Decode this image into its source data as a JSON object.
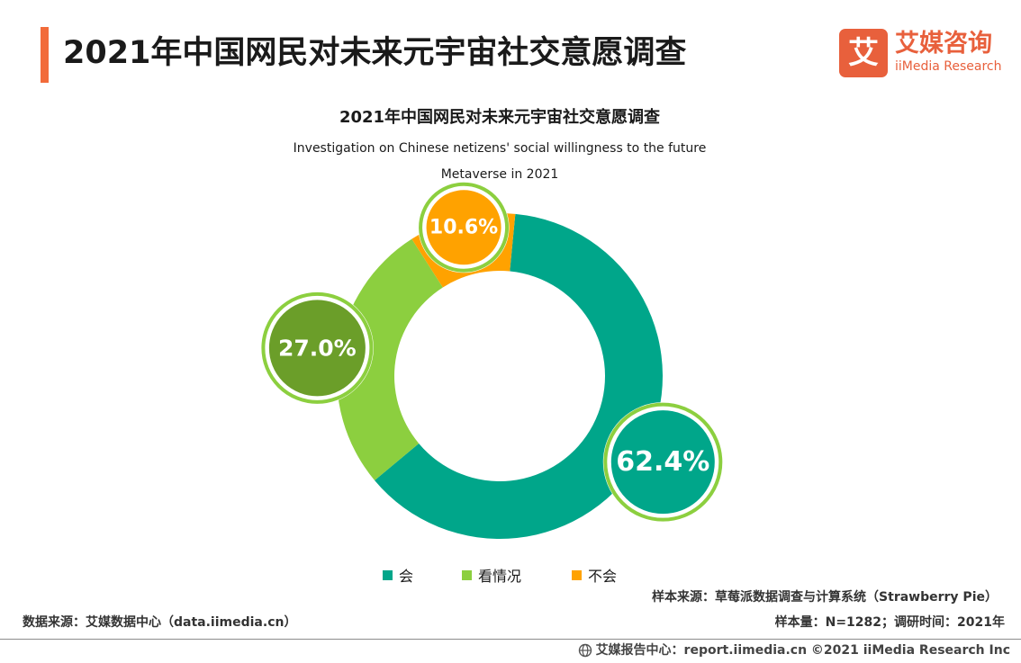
{
  "header": {
    "title": "2021年中国网民对未来元宇宙社交意愿调查",
    "accent_color": "#f26b3a"
  },
  "logo": {
    "glyph": "艾",
    "name_cn": "艾媒咨询",
    "name_en": "iiMedia Research",
    "color": "#e8603c"
  },
  "chart_data": {
    "type": "pie",
    "title": "2021年中国网民对未来元宇宙社交意愿调查",
    "subtitle_lines": [
      "Investigation on Chinese netizens' social willingness to the future",
      "Metaverse in 2021"
    ],
    "unit": "%",
    "donut": true,
    "legend_position": "bottom",
    "slices": [
      {
        "label": "会",
        "value": 62.4,
        "display": "62.4%",
        "color": "#00a68a",
        "bubble_color": "#00a68a",
        "bubble_ring": "#8ccf3f"
      },
      {
        "label": "看情况",
        "value": 27.0,
        "display": "27.0%",
        "color": "#8ccf3f",
        "bubble_color": "#6b9e29",
        "bubble_ring": "#8ccf3f"
      },
      {
        "label": "不会",
        "value": 10.6,
        "display": "10.6%",
        "color": "#ffa200",
        "bubble_color": "#ffa200",
        "bubble_ring": "#8ccf3f"
      }
    ]
  },
  "notes": {
    "sample_source": "样本来源：草莓派数据调查与计算系统（Strawberry Pie）",
    "sample_size": "样本量：N=1282；调研时间：2021年",
    "data_source": "数据来源：艾媒数据中心（data.iimedia.cn）"
  },
  "footer": {
    "text": "艾媒报告中心：report.iimedia.cn   ©2021  iiMedia Research  Inc",
    "icon": "globe-icon"
  }
}
